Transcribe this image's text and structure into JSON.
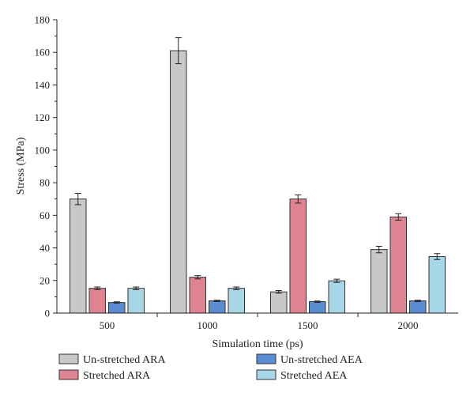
{
  "chart_data": {
    "type": "bar",
    "xlabel": "Simulation time (ps)",
    "ylabel": "Stress (MPa)",
    "ylim": [
      0,
      180
    ],
    "yticks": [
      0,
      20,
      40,
      60,
      80,
      100,
      120,
      140,
      160,
      180
    ],
    "categories": [
      "500",
      "1000",
      "1500",
      "2000"
    ],
    "grid": false,
    "legend_position": "bottom",
    "series": [
      {
        "name": "Un-stretched ARA",
        "color": "#c8c8c6",
        "values": [
          70,
          161,
          13,
          39
        ],
        "errors": [
          3.5,
          8,
          0.8,
          2
        ]
      },
      {
        "name": "Stretched ARA",
        "color": "#dd8490",
        "values": [
          15.2,
          22,
          70,
          59
        ],
        "errors": [
          0.8,
          1,
          2.5,
          2
        ]
      },
      {
        "name": "Un-stretched AEA",
        "color": "#5b8bd0",
        "values": [
          6.5,
          7.5,
          7,
          7.5
        ],
        "errors": [
          0.4,
          0.4,
          0.4,
          0.4
        ]
      },
      {
        "name": "Stretched AEA",
        "color": "#a7d6e7",
        "values": [
          15.2,
          15.2,
          19.8,
          34.7
        ],
        "errors": [
          0.8,
          0.8,
          1,
          1.8
        ]
      }
    ]
  }
}
